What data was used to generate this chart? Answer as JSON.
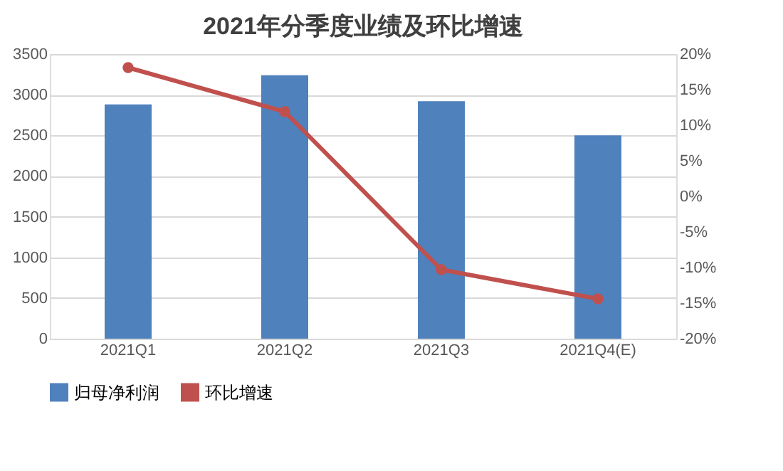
{
  "chart_data": {
    "type": "bar",
    "title": "2021年分季度业绩及环比增速",
    "categories": [
      "2021Q1",
      "2021Q2",
      "2021Q3",
      "2021Q4(E)"
    ],
    "series": [
      {
        "name": "归母净利润",
        "color": "#4f81bd",
        "values": [
          2880,
          3240,
          2920,
          2500
        ]
      },
      {
        "name": "环比增速",
        "type": "line",
        "axis": "y2",
        "color": "#c0504d",
        "values": [
          18.1,
          11.9,
          -10.3,
          -14.4
        ]
      }
    ],
    "ylim": [
      0,
      3500
    ],
    "yticks": [
      0,
      500,
      1000,
      1500,
      2000,
      2500,
      3000,
      3500
    ],
    "y2lim": [
      -20,
      20
    ],
    "y2ticks": [
      {
        "value": -20,
        "label": "-20%"
      },
      {
        "value": -15,
        "label": "-15%"
      },
      {
        "value": -10,
        "label": "-10%"
      },
      {
        "value": -5,
        "label": "-5%"
      },
      {
        "value": 0,
        "label": "0%"
      },
      {
        "value": 5,
        "label": "5%"
      },
      {
        "value": 10,
        "label": "10%"
      },
      {
        "value": 15,
        "label": "15%"
      },
      {
        "value": 20,
        "label": "20%"
      }
    ],
    "grid": "y",
    "legend": "bottom",
    "marker": "circle",
    "line_style": "solid"
  }
}
